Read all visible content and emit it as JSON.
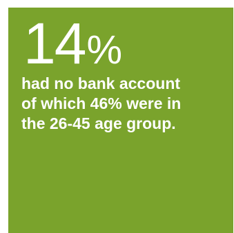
{
  "tile": {
    "background_color": "#7aa32c",
    "text_color": "#ffffff"
  },
  "stat": {
    "number": "14",
    "unit": "%"
  },
  "caption": {
    "lines": [
      "had no bank account",
      "of which 46% were in",
      "the 26-45 age group."
    ]
  }
}
